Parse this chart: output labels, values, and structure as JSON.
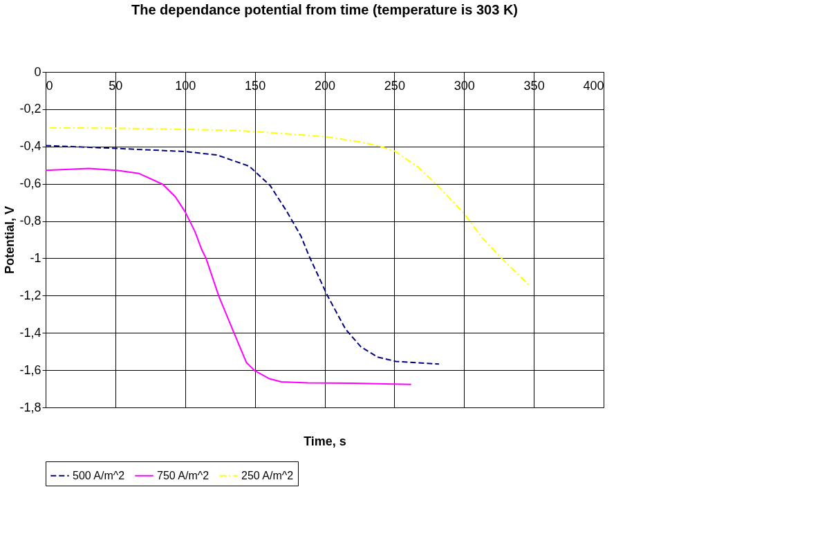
{
  "chart_data": {
    "type": "line",
    "title": "The dependance potential from time (temperature is 303 K)",
    "xlabel": "Time, s",
    "ylabel": "Potential, V",
    "xlim": [
      0,
      400
    ],
    "xticks": [
      0,
      50,
      100,
      150,
      200,
      250,
      300,
      350,
      400
    ],
    "ylim": [
      -1.8,
      0
    ],
    "yticks": [
      {
        "value": 0,
        "label": "0"
      },
      {
        "value": -0.2,
        "label": "-0,2"
      },
      {
        "value": -0.4,
        "label": "-0,4"
      },
      {
        "value": -0.6,
        "label": "-0,6"
      },
      {
        "value": -0.8,
        "label": "-0,8"
      },
      {
        "value": -1,
        "label": "-1"
      },
      {
        "value": -1.2,
        "label": "-1,2"
      },
      {
        "value": -1.4,
        "label": "-1,4"
      },
      {
        "value": -1.6,
        "label": "-1,6"
      },
      {
        "value": -1.8,
        "label": "-1,8"
      }
    ],
    "grid": true,
    "legend": "bottom",
    "marker": "none",
    "series": [
      {
        "name": "500 A/m^2",
        "color": "#000080",
        "line_style": "dashed",
        "x": [
          0,
          50,
          100,
          123,
          146,
          161,
          173,
          183,
          189,
          202,
          215,
          226,
          238,
          251,
          282
        ],
        "values": [
          -0.395,
          -0.41,
          -0.427,
          -0.446,
          -0.506,
          -0.61,
          -0.75,
          -0.88,
          -0.99,
          -1.2,
          -1.38,
          -1.475,
          -1.53,
          -1.553,
          -1.567
        ]
      },
      {
        "name": "750 A/m^2",
        "color": "#ff00ff",
        "line_style": "solid",
        "x": [
          0,
          31,
          51,
          67,
          84,
          93,
          100,
          107,
          112,
          115,
          124,
          135,
          144,
          150,
          160,
          169,
          188,
          226,
          262
        ],
        "values": [
          -0.528,
          -0.518,
          -0.528,
          -0.545,
          -0.603,
          -0.67,
          -0.75,
          -0.856,
          -0.955,
          -1.0,
          -1.2,
          -1.4,
          -1.56,
          -1.603,
          -1.645,
          -1.663,
          -1.668,
          -1.671,
          -1.677
        ]
      },
      {
        "name": "250 A/m^2",
        "color": "#ffff00",
        "line_style": "dashdot",
        "x": [
          3,
          50,
          100,
          136,
          170,
          200,
          225,
          239,
          250,
          267,
          281,
          300,
          313,
          327,
          346
        ],
        "values": [
          -0.3,
          -0.302,
          -0.308,
          -0.314,
          -0.33,
          -0.347,
          -0.375,
          -0.397,
          -0.424,
          -0.51,
          -0.61,
          -0.76,
          -0.89,
          -1.0,
          -1.14
        ]
      }
    ]
  }
}
